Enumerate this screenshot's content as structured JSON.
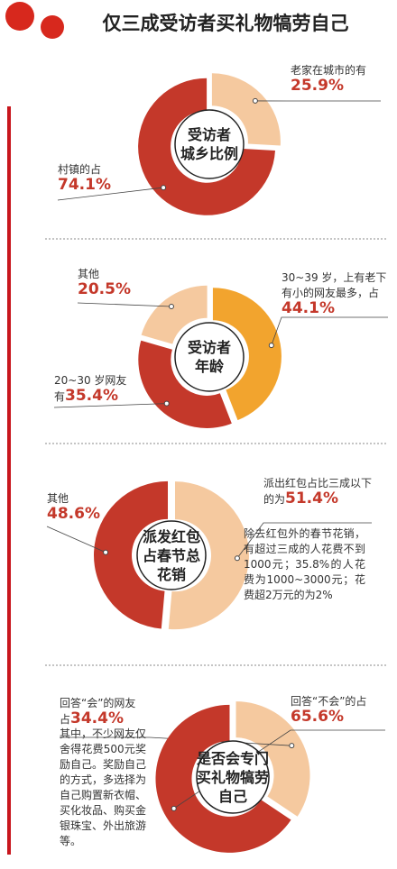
{
  "title": "仅三成受访者买礼物犒劳自己",
  "chart_data": [
    {
      "type": "donut",
      "center_label": [
        "受访者",
        "城乡比例"
      ],
      "categories": [
        "老家在城市的有",
        "村镇的占"
      ],
      "values": [
        25.9,
        74.1
      ],
      "value_labels": [
        "25.9%",
        "74.1%"
      ],
      "colors": [
        "#f5c99f",
        "#c4382a"
      ]
    },
    {
      "type": "donut",
      "center_label": [
        "受访者",
        "年龄"
      ],
      "categories": [
        "30~39 岁，上有老下有小的网友最多，占",
        "20~30 岁网友有",
        "其他"
      ],
      "values": [
        44.1,
        35.4,
        20.5
      ],
      "value_labels": [
        "44.1%",
        "35.4%",
        "20.5%"
      ],
      "colors": [
        "#f2a42e",
        "#c4382a",
        "#f5c99f"
      ]
    },
    {
      "type": "donut",
      "center_label": [
        "派发红包",
        "占春节总",
        "花销"
      ],
      "categories": [
        "派出红包占比三成以下的为",
        "其他"
      ],
      "values": [
        51.4,
        48.6
      ],
      "value_labels": [
        "51.4%",
        "48.6%"
      ],
      "colors": [
        "#f5c99f",
        "#c4382a"
      ],
      "note": "除去红包外的春节花销，有超过三成的人花费不到1000元；35.8%的人花费为1000~3000元；花费超2万元的为2%"
    },
    {
      "type": "donut",
      "center_label": [
        "是否会专门",
        "买礼物犒劳",
        "自己"
      ],
      "categories": [
        "回答“会”的网友占",
        "回答“不会”的占"
      ],
      "values": [
        34.4,
        65.6
      ],
      "value_labels": [
        "34.4%",
        "65.6%"
      ],
      "colors": [
        "#f5c99f",
        "#c4382a"
      ],
      "note": "其中，不少网友仅舍得花费500元奖励自己。奖励自己的方式，多选择为自己购置新衣帽、买化妆品、购买金银珠宝、外出旅游等。"
    }
  ]
}
